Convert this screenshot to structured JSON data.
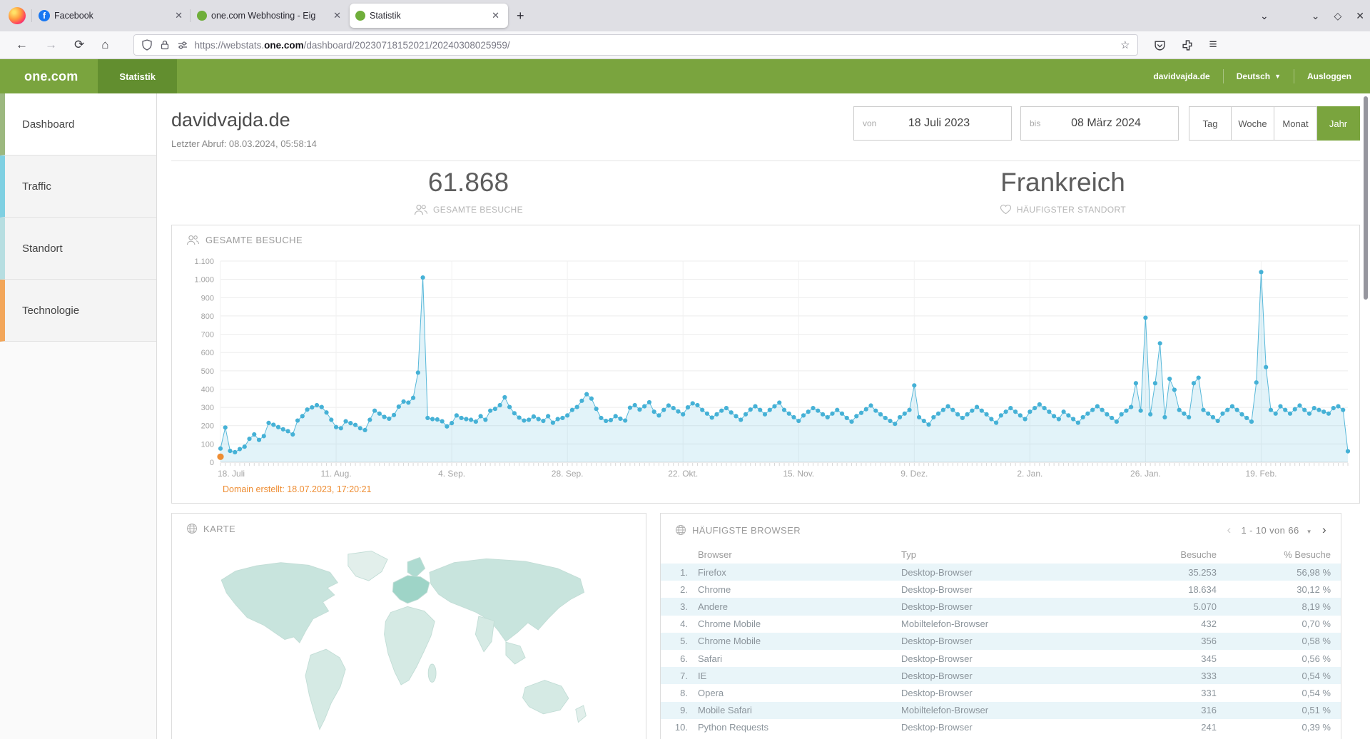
{
  "browser": {
    "tabs": [
      {
        "title": "Facebook",
        "favicon": "facebook"
      },
      {
        "title": "one.com Webhosting - Eig",
        "favicon": "green-dot"
      },
      {
        "title": "Statistik",
        "favicon": "green-dot",
        "active": true
      }
    ],
    "new_tab_label": "+",
    "url": {
      "pre": "https://webstats.",
      "domain": "one.com",
      "path": "/dashboard/20230718152021/20240308025959/"
    },
    "window_controls": {
      "minimize": "⌄",
      "maximize": "◇",
      "close": "✕"
    },
    "nav": {
      "back": "←",
      "forward": "→",
      "reload": "⟳",
      "home": "⌂",
      "star": "☆",
      "menu": "≡",
      "tabs_list": "⌄"
    }
  },
  "header": {
    "logo": "one.com",
    "nav_tab": "Statistik",
    "account": "davidvajda.de",
    "language": "Deutsch",
    "language_caret": "▼",
    "logout": "Ausloggen"
  },
  "sidebar": {
    "items": [
      {
        "label": "Dashboard",
        "color": "#9cb87f",
        "active": true
      },
      {
        "label": "Traffic",
        "color": "#7fd0e2",
        "active": false
      },
      {
        "label": "Standort",
        "color": "#b7dee1",
        "active": false
      },
      {
        "label": "Technologie",
        "color": "#f2a65a",
        "active": false
      }
    ]
  },
  "page": {
    "title": "davidvajda.de",
    "last_fetch": "Letzter Abruf: 08.03.2024, 05:58:14",
    "date_from": {
      "label": "von",
      "value": "18 Juli 2023"
    },
    "date_to": {
      "label": "bis",
      "value": "08 März 2024"
    },
    "period_buttons": [
      "Tag",
      "Woche",
      "Monat",
      "Jahr"
    ],
    "period_selected": "Jahr",
    "stats": [
      {
        "value": "61.868",
        "label": "GESAMTE BESUCHE"
      },
      {
        "value": "Frankreich",
        "label": "HÄUFIGSTER STANDORT"
      }
    ]
  },
  "chart_data": {
    "type": "area",
    "title": "GESAMTE BESUCHE",
    "ylim": [
      0,
      1100
    ],
    "y_tick_labels": [
      "0",
      "100",
      "200",
      "300",
      "400",
      "500",
      "600",
      "700",
      "800",
      "900",
      "1.000",
      "1.100"
    ],
    "x_tick_labels": [
      "18. Juli",
      "11. Aug.",
      "4. Sep.",
      "28. Sep.",
      "22. Okt.",
      "15. Nov.",
      "9. Dez.",
      "2. Jan.",
      "26. Jan.",
      "19. Feb."
    ],
    "x_tick_interval_days": 24,
    "line_color": "#58b8d9",
    "dot_color": "#45b1d6",
    "fill_color": "rgba(111,195,223,0.20)",
    "grid": true,
    "annotation": {
      "text": "Domain erstellt: 18.07.2023, 17:20:21",
      "x_index": 0,
      "value": 30,
      "color": "#ee8d33"
    },
    "values": [
      75,
      190,
      62,
      55,
      72,
      85,
      128,
      152,
      122,
      143,
      215,
      205,
      192,
      180,
      170,
      152,
      228,
      252,
      288,
      300,
      312,
      302,
      272,
      232,
      192,
      186,
      224,
      214,
      204,
      186,
      176,
      232,
      282,
      266,
      248,
      238,
      258,
      304,
      332,
      326,
      352,
      490,
      1010,
      242,
      236,
      234,
      224,
      196,
      214,
      256,
      242,
      236,
      232,
      222,
      252,
      232,
      282,
      292,
      312,
      355,
      302,
      268,
      244,
      228,
      232,
      250,
      236,
      226,
      252,
      216,
      236,
      242,
      256,
      286,
      302,
      336,
      372,
      348,
      292,
      242,
      226,
      230,
      252,
      238,
      228,
      298,
      312,
      288,
      306,
      328,
      276,
      256,
      286,
      310,
      296,
      278,
      262,
      300,
      322,
      312,
      286,
      266,
      244,
      262,
      282,
      296,
      272,
      252,
      232,
      262,
      288,
      306,
      286,
      262,
      286,
      306,
      326,
      286,
      266,
      246,
      226,
      256,
      276,
      296,
      282,
      262,
      246,
      266,
      286,
      266,
      242,
      222,
      252,
      270,
      290,
      310,
      282,
      262,
      242,
      226,
      210,
      246,
      266,
      286,
      420,
      246,
      226,
      206,
      246,
      266,
      286,
      306,
      286,
      262,
      242,
      262,
      282,
      302,
      282,
      262,
      236,
      216,
      256,
      276,
      296,
      276,
      256,
      236,
      276,
      296,
      316,
      296,
      276,
      252,
      236,
      276,
      256,
      236,
      216,
      246,
      266,
      286,
      306,
      286,
      262,
      242,
      222,
      262,
      282,
      302,
      432,
      282,
      790,
      262,
      432,
      650,
      246,
      456,
      396,
      286,
      266,
      246,
      432,
      462,
      286,
      266,
      246,
      226,
      266,
      286,
      306,
      286,
      262,
      242,
      222,
      436,
      1040,
      520,
      286,
      266,
      306,
      286,
      266,
      290,
      310,
      286,
      266,
      296,
      286,
      276,
      266,
      296,
      306,
      286,
      60
    ]
  },
  "map_panel": {
    "title": "KARTE"
  },
  "browser_panel": {
    "title": "HÄUFIGSTE BROWSER",
    "pagination": "1 - 10 von 66",
    "pagination_caret": "▼",
    "prev": "‹",
    "next": "›",
    "columns": [
      "Browser",
      "Typ",
      "Besuche",
      "% Besuche"
    ],
    "rows": [
      {
        "rank": "1.",
        "browser": "Firefox",
        "type": "Desktop-Browser",
        "visits": "35.253",
        "percent": "56,98 %"
      },
      {
        "rank": "2.",
        "browser": "Chrome",
        "type": "Desktop-Browser",
        "visits": "18.634",
        "percent": "30,12 %"
      },
      {
        "rank": "3.",
        "browser": "Andere",
        "type": "Desktop-Browser",
        "visits": "5.070",
        "percent": "8,19 %"
      },
      {
        "rank": "4.",
        "browser": "Chrome Mobile",
        "type": "Mobiltelefon-Browser",
        "visits": "432",
        "percent": "0,70 %"
      },
      {
        "rank": "5.",
        "browser": "Chrome Mobile",
        "type": "Desktop-Browser",
        "visits": "356",
        "percent": "0,58 %"
      },
      {
        "rank": "6.",
        "browser": "Safari",
        "type": "Desktop-Browser",
        "visits": "345",
        "percent": "0,56 %"
      },
      {
        "rank": "7.",
        "browser": "IE",
        "type": "Desktop-Browser",
        "visits": "333",
        "percent": "0,54 %"
      },
      {
        "rank": "8.",
        "browser": "Opera",
        "type": "Desktop-Browser",
        "visits": "331",
        "percent": "0,54 %"
      },
      {
        "rank": "9.",
        "browser": "Mobile Safari",
        "type": "Mobiltelefon-Browser",
        "visits": "316",
        "percent": "0,51 %"
      },
      {
        "rank": "10.",
        "browser": "Python Requests",
        "type": "Desktop-Browser",
        "visits": "241",
        "percent": "0,39 %"
      }
    ]
  }
}
